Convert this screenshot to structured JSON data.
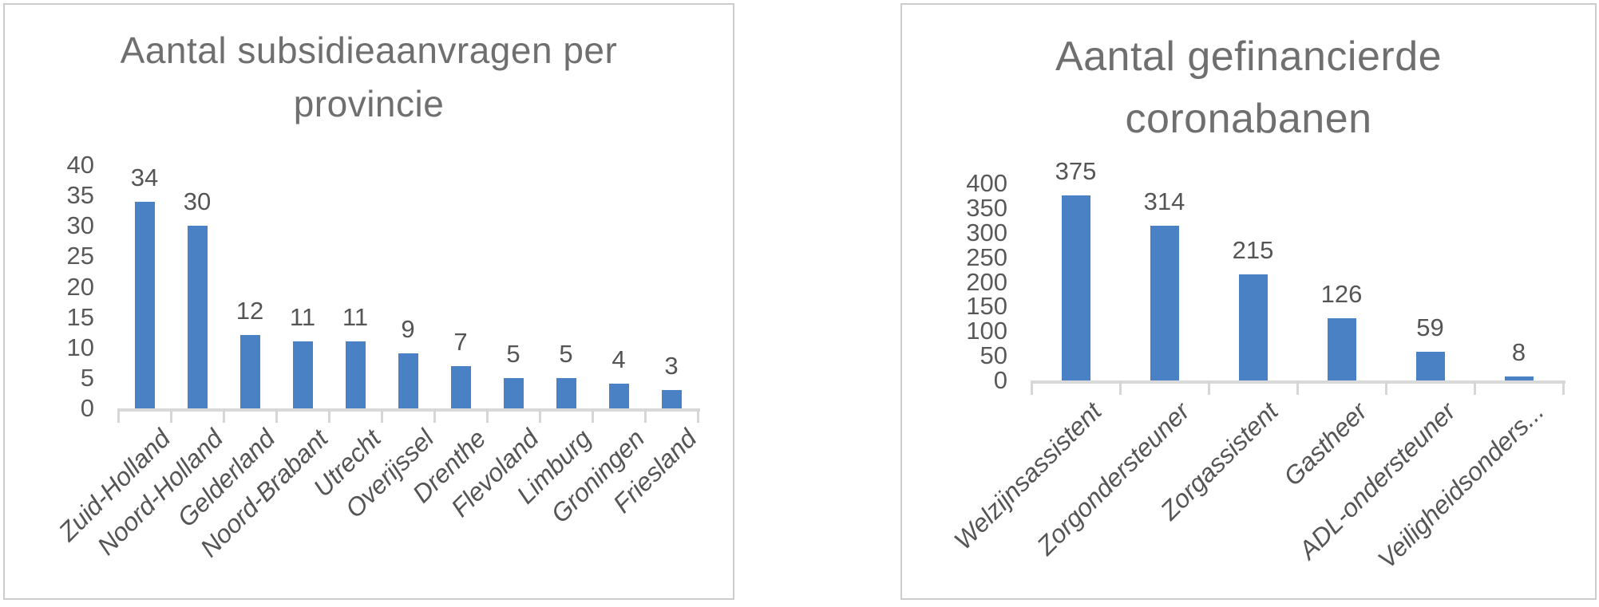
{
  "chart_data": [
    {
      "type": "bar",
      "title": "Aantal subsidieaanvragen per provincie",
      "categories": [
        "Zuid-Holland",
        "Noord-Holland",
        "Gelderland",
        "Noord-Brabant",
        "Utrecht",
        "Overijssel",
        "Drenthe",
        "Flevoland",
        "Limburg",
        "Groningen",
        "Friesland"
      ],
      "values": [
        34,
        30,
        12,
        11,
        11,
        9,
        7,
        5,
        5,
        4,
        3
      ],
      "xlabel": "",
      "ylabel": "",
      "ylim": [
        0,
        40
      ],
      "yticks": [
        40,
        35,
        30,
        25,
        20,
        15,
        10,
        5,
        0
      ],
      "grid": false,
      "legend": "none",
      "data_labels": true,
      "bar_color": "#4a81c4"
    },
    {
      "type": "bar",
      "title": "Aantal gefinancierde coronabanen",
      "categories": [
        "Welzijnsassistent",
        "Zorgondersteuner",
        "Zorgassistent",
        "Gastheer",
        "ADL-ondersteuner",
        "Veiligheidsonders..."
      ],
      "values": [
        375,
        314,
        215,
        126,
        59,
        8
      ],
      "xlabel": "",
      "ylabel": "",
      "ylim": [
        0,
        400
      ],
      "yticks": [
        400,
        350,
        300,
        250,
        200,
        150,
        100,
        50,
        0
      ],
      "grid": false,
      "legend": "none",
      "data_labels": true,
      "bar_color": "#4a81c4"
    }
  ],
  "colors": {
    "bar": "#4a81c4",
    "title_text": "#6f6f6f",
    "axis_text": "#595959",
    "label_text": "#555555",
    "axis_line": "#d9d9d9",
    "panel_border": "#cccccc",
    "background": "#ffffff"
  }
}
